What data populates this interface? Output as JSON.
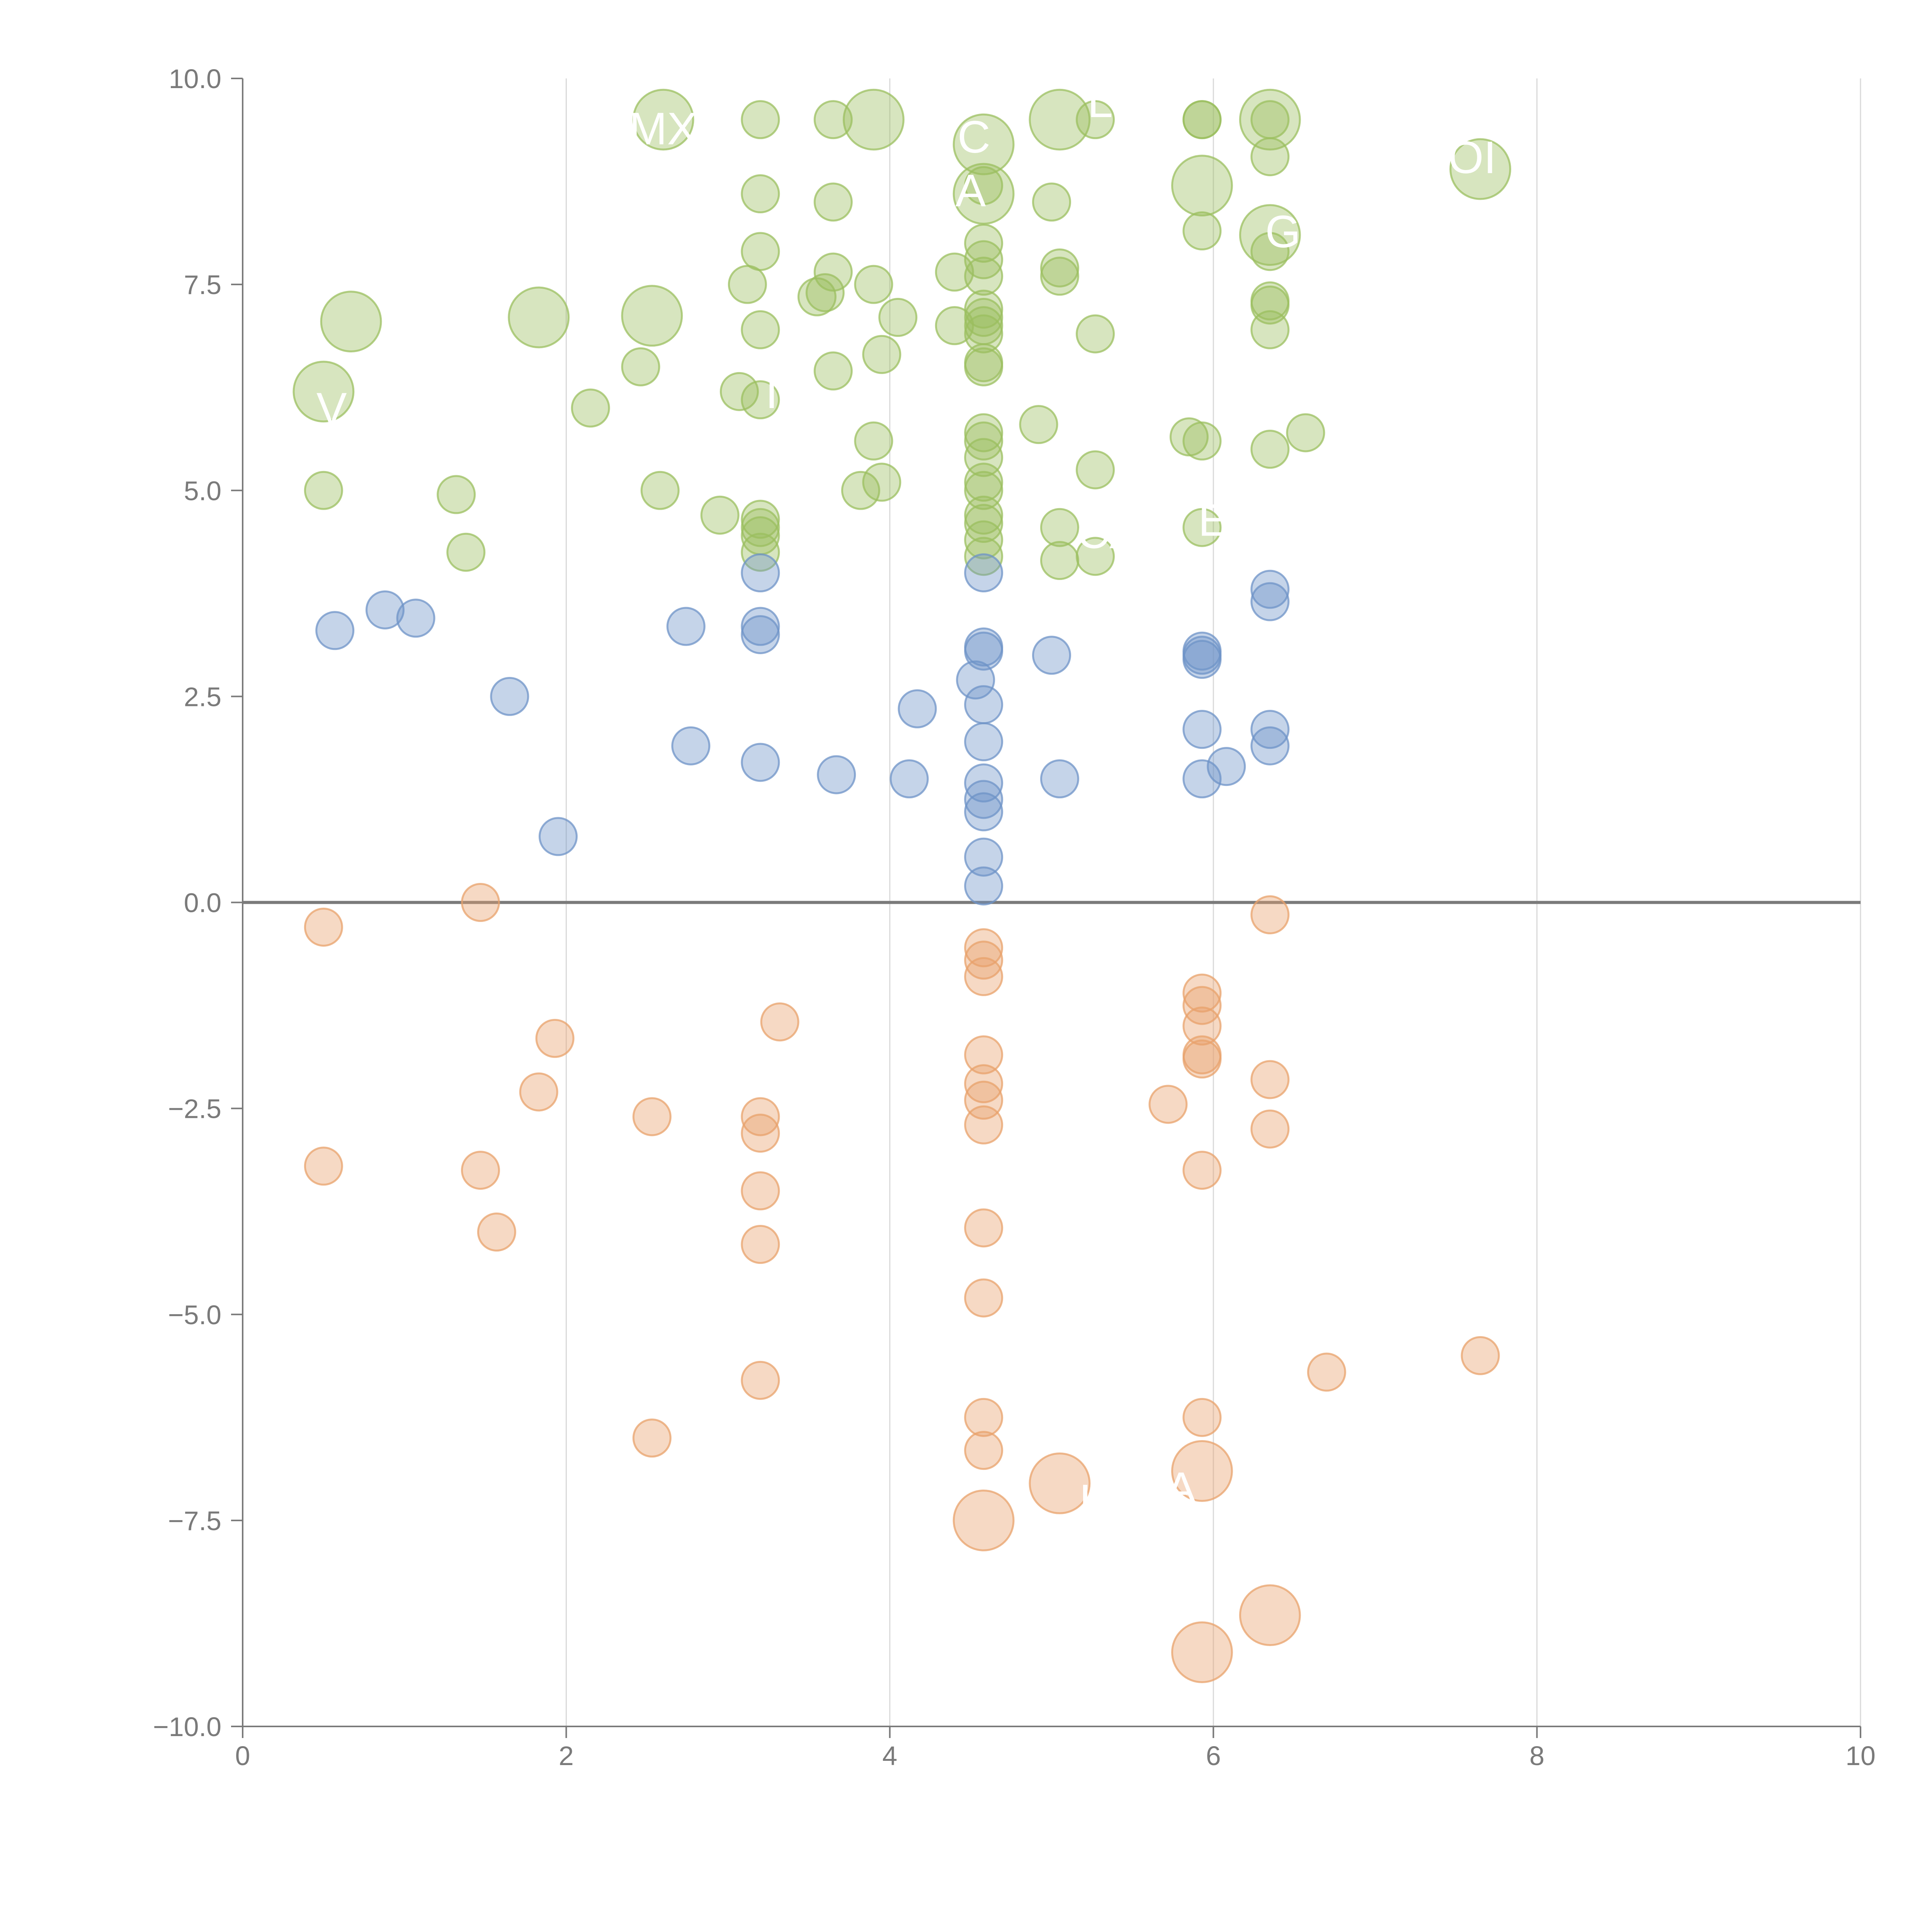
{
  "chart_data": {
    "type": "scatter",
    "title": "",
    "xlabel": "",
    "ylabel": "",
    "xlim": [
      0,
      10
    ],
    "ylim": [
      -10,
      10
    ],
    "x_ticks": [
      "0",
      "2",
      "4",
      "6",
      "8",
      "10"
    ],
    "y_ticks": [
      "10.0",
      "7.5",
      "5.0",
      "2.5",
      "0.0",
      "−2.5",
      "−5.0",
      "−7.5",
      "−10.0"
    ],
    "x_tick_values": [
      0,
      2,
      4,
      6,
      8,
      10
    ],
    "y_tick_values": [
      10,
      7.5,
      5,
      2.5,
      0,
      -2.5,
      -5,
      -7.5,
      -10
    ],
    "grid": "vertical",
    "zero_line": true,
    "series": [
      {
        "name": "green",
        "color": "#9bbf5f",
        "points": [
          [
            0.5,
            6.2,
            2.6
          ],
          [
            0.67,
            7.05,
            2.6
          ],
          [
            1.83,
            7.1,
            2.6
          ],
          [
            2.53,
            7.12,
            2.6
          ],
          [
            2.6,
            9.5,
            2.6
          ],
          [
            3.9,
            9.5,
            2.6
          ],
          [
            4.58,
            9.2,
            2.6
          ],
          [
            4.58,
            8.6,
            2.6
          ],
          [
            5.05,
            9.5,
            2.6
          ],
          [
            5.93,
            8.7,
            2.6
          ],
          [
            6.35,
            9.5,
            2.6
          ],
          [
            6.35,
            8.1,
            2.6
          ],
          [
            7.65,
            8.9,
            2.6
          ],
          [
            0.5,
            5.0,
            1
          ],
          [
            1.32,
            4.95,
            1
          ],
          [
            1.38,
            4.25,
            1
          ],
          [
            2.15,
            6.0,
            1
          ],
          [
            2.46,
            6.5,
            1
          ],
          [
            2.58,
            5.0,
            1
          ],
          [
            2.95,
            4.7,
            1
          ],
          [
            3.07,
            6.2,
            1
          ],
          [
            3.12,
            7.5,
            1
          ],
          [
            3.2,
            9.5,
            1
          ],
          [
            3.2,
            8.6,
            1
          ],
          [
            3.2,
            7.9,
            1
          ],
          [
            3.2,
            6.95,
            1
          ],
          [
            3.2,
            6.1,
            1
          ],
          [
            3.2,
            4.65,
            1
          ],
          [
            3.2,
            4.55,
            1
          ],
          [
            3.2,
            4.45,
            1
          ],
          [
            3.2,
            4.25,
            1
          ],
          [
            3.55,
            7.35,
            1
          ],
          [
            3.6,
            7.4,
            1
          ],
          [
            3.65,
            9.5,
            1
          ],
          [
            3.65,
            8.5,
            1
          ],
          [
            3.65,
            7.65,
            1
          ],
          [
            3.65,
            6.45,
            1
          ],
          [
            3.82,
            5.0,
            1
          ],
          [
            3.9,
            5.6,
            1
          ],
          [
            3.9,
            7.5,
            1
          ],
          [
            3.95,
            6.65,
            1
          ],
          [
            3.95,
            5.1,
            1
          ],
          [
            4.05,
            7.1,
            1
          ],
          [
            4.4,
            7.65,
            1
          ],
          [
            4.4,
            7.0,
            1
          ],
          [
            4.58,
            8.7,
            1
          ],
          [
            4.58,
            8.0,
            1
          ],
          [
            4.58,
            7.8,
            1
          ],
          [
            4.58,
            7.6,
            1
          ],
          [
            4.58,
            7.2,
            1
          ],
          [
            4.58,
            7.1,
            1
          ],
          [
            4.58,
            7.0,
            1
          ],
          [
            4.58,
            6.9,
            1
          ],
          [
            4.58,
            6.55,
            1
          ],
          [
            4.58,
            6.5,
            1
          ],
          [
            4.58,
            5.7,
            1
          ],
          [
            4.58,
            5.6,
            1
          ],
          [
            4.58,
            5.4,
            1
          ],
          [
            4.58,
            5.1,
            1
          ],
          [
            4.58,
            5.0,
            1
          ],
          [
            4.58,
            4.7,
            1
          ],
          [
            4.58,
            4.6,
            1
          ],
          [
            4.58,
            4.4,
            1
          ],
          [
            4.58,
            4.2,
            1
          ],
          [
            4.92,
            5.8,
            1
          ],
          [
            5.0,
            8.5,
            1
          ],
          [
            5.05,
            7.7,
            1
          ],
          [
            5.05,
            7.6,
            1
          ],
          [
            5.05,
            4.55,
            1
          ],
          [
            5.05,
            4.15,
            1
          ],
          [
            5.27,
            6.9,
            1
          ],
          [
            5.27,
            5.25,
            1
          ],
          [
            5.27,
            4.2,
            1
          ],
          [
            5.27,
            9.5,
            1
          ],
          [
            5.85,
            5.65,
            1
          ],
          [
            5.93,
            9.5,
            1
          ],
          [
            5.93,
            9.5,
            1
          ],
          [
            5.93,
            8.15,
            1
          ],
          [
            5.93,
            5.6,
            1
          ],
          [
            5.93,
            4.55,
            1
          ],
          [
            6.35,
            9.5,
            1
          ],
          [
            6.35,
            9.05,
            1
          ],
          [
            6.35,
            7.9,
            1
          ],
          [
            6.35,
            7.3,
            1
          ],
          [
            6.35,
            7.25,
            1
          ],
          [
            6.35,
            6.95,
            1
          ],
          [
            6.35,
            5.5,
            1
          ],
          [
            6.57,
            5.7,
            1
          ]
        ]
      },
      {
        "name": "blue",
        "color": "#6e93c7",
        "points": [
          [
            0.57,
            3.3,
            1
          ],
          [
            0.88,
            3.55,
            1
          ],
          [
            1.07,
            3.45,
            1
          ],
          [
            1.65,
            2.5,
            1
          ],
          [
            1.95,
            0.8,
            1
          ],
          [
            2.74,
            3.35,
            1
          ],
          [
            2.77,
            1.9,
            1
          ],
          [
            3.2,
            4.0,
            1
          ],
          [
            3.2,
            3.35,
            1
          ],
          [
            3.2,
            3.25,
            1
          ],
          [
            3.2,
            1.7,
            1
          ],
          [
            3.67,
            1.55,
            1
          ],
          [
            4.12,
            1.5,
            1
          ],
          [
            4.17,
            2.35,
            1
          ],
          [
            4.53,
            2.7,
            1
          ],
          [
            4.58,
            4.0,
            1
          ],
          [
            4.58,
            3.1,
            1
          ],
          [
            4.58,
            3.05,
            1
          ],
          [
            4.58,
            2.4,
            1
          ],
          [
            4.58,
            1.95,
            1
          ],
          [
            4.58,
            1.45,
            1
          ],
          [
            4.58,
            1.25,
            1
          ],
          [
            4.58,
            1.1,
            1
          ],
          [
            4.58,
            0.55,
            1
          ],
          [
            4.58,
            0.2,
            1
          ],
          [
            5.0,
            3.0,
            1
          ],
          [
            5.05,
            1.5,
            1
          ],
          [
            5.93,
            3.05,
            1
          ],
          [
            5.93,
            3.0,
            1
          ],
          [
            5.93,
            2.95,
            1
          ],
          [
            5.93,
            2.1,
            1
          ],
          [
            5.93,
            1.5,
            1
          ],
          [
            6.08,
            1.65,
            1
          ],
          [
            6.35,
            3.8,
            1
          ],
          [
            6.35,
            3.65,
            1
          ],
          [
            6.35,
            2.1,
            1
          ],
          [
            6.35,
            1.9,
            1
          ]
        ]
      },
      {
        "name": "orange",
        "color": "#e8a16b",
        "points": [
          [
            0.5,
            -0.3,
            1
          ],
          [
            0.5,
            -3.2,
            1
          ],
          [
            1.47,
            0.0,
            1
          ],
          [
            1.47,
            -3.25,
            1
          ],
          [
            1.57,
            -4.0,
            1
          ],
          [
            1.83,
            -2.3,
            1
          ],
          [
            1.93,
            -1.65,
            1
          ],
          [
            2.53,
            -2.6,
            1
          ],
          [
            2.53,
            -6.5,
            1
          ],
          [
            3.2,
            -2.6,
            1
          ],
          [
            3.2,
            -2.8,
            1
          ],
          [
            3.2,
            -3.5,
            1
          ],
          [
            3.2,
            -4.15,
            1
          ],
          [
            3.2,
            -5.8,
            1
          ],
          [
            3.32,
            -1.45,
            1
          ],
          [
            4.58,
            -0.55,
            1
          ],
          [
            4.58,
            -0.7,
            1
          ],
          [
            4.58,
            -0.9,
            1
          ],
          [
            4.58,
            -1.85,
            1
          ],
          [
            4.58,
            -2.2,
            1
          ],
          [
            4.58,
            -2.4,
            1
          ],
          [
            4.58,
            -2.7,
            1
          ],
          [
            4.58,
            -3.95,
            1
          ],
          [
            4.58,
            -4.8,
            1
          ],
          [
            4.58,
            -6.25,
            1
          ],
          [
            4.58,
            -6.65,
            1
          ],
          [
            4.58,
            -7.5,
            2.6
          ],
          [
            5.05,
            -7.05,
            2.6
          ],
          [
            5.72,
            -2.45,
            1
          ],
          [
            5.93,
            -1.1,
            1
          ],
          [
            5.93,
            -1.25,
            1
          ],
          [
            5.93,
            -1.5,
            1
          ],
          [
            5.93,
            -1.85,
            1
          ],
          [
            5.93,
            -1.9,
            1
          ],
          [
            5.93,
            -3.25,
            1
          ],
          [
            5.93,
            -6.25,
            1
          ],
          [
            5.93,
            -6.9,
            2.6
          ],
          [
            5.93,
            -9.1,
            2.6
          ],
          [
            6.35,
            -0.15,
            1
          ],
          [
            6.35,
            -2.15,
            1
          ],
          [
            6.35,
            -2.75,
            1
          ],
          [
            6.35,
            -8.65,
            2.6
          ],
          [
            6.7,
            -5.7,
            1
          ],
          [
            7.65,
            -5.5,
            1
          ]
        ]
      }
    ],
    "annotations": [
      {
        "text": "MX",
        "x": 2.6,
        "y": 9.2
      },
      {
        "text": "C",
        "x": 4.52,
        "y": 9.1
      },
      {
        "text": "L",
        "x": 5.3,
        "y": 9.53
      },
      {
        "text": "CA",
        "x": 5.35,
        "y": 4.3
      },
      {
        "text": "G",
        "x": 6.43,
        "y": 7.95
      },
      {
        "text": "V",
        "x": 0.55,
        "y": 5.8
      },
      {
        "text": "A",
        "x": 4.5,
        "y": 8.45
      },
      {
        "text": "I",
        "x": 3.27,
        "y": 6.0
      },
      {
        "text": "E",
        "x": 6.0,
        "y": 4.45
      },
      {
        "text": "OI",
        "x": 7.6,
        "y": 8.85
      },
      {
        "text": "L",
        "x": 5.25,
        "y": -7.45
      },
      {
        "text": "A",
        "x": 5.8,
        "y": -7.3
      }
    ]
  }
}
